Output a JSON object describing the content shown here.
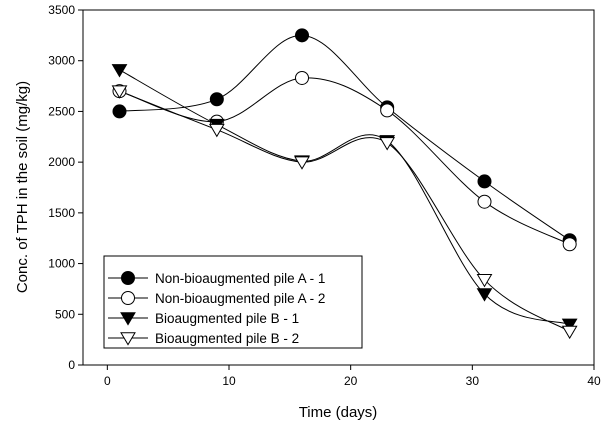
{
  "chart_data": {
    "type": "line",
    "xlabel": "Time (days)",
    "ylabel": "Conc. of TPH  in the soil (mg/kg)",
    "xlim": [
      -2,
      40
    ],
    "ylim": [
      0,
      3500
    ],
    "xticks": [
      0,
      10,
      20,
      30,
      40
    ],
    "yticks": [
      0,
      500,
      1000,
      1500,
      2000,
      2500,
      3000,
      3500
    ],
    "grid": false,
    "legend_position": "bottom-left",
    "series": [
      {
        "name": "Non-bioaugmented pile A - 1",
        "marker": "circle-filled",
        "x": [
          1,
          9,
          16,
          23,
          31,
          38
        ],
        "y": [
          2500,
          2620,
          3250,
          2540,
          1810,
          1230
        ]
      },
      {
        "name": "Non-bioaugmented pile A - 2",
        "marker": "circle-open",
        "x": [
          1,
          9,
          16,
          23,
          31,
          38
        ],
        "y": [
          2700,
          2400,
          2830,
          2510,
          1610,
          1190
        ]
      },
      {
        "name": "Bioaugmented pile B - 1",
        "marker": "triangle-down-filled",
        "x": [
          1,
          9,
          16,
          23,
          31,
          38
        ],
        "y": [
          2910,
          2370,
          2010,
          2210,
          700,
          400
        ]
      },
      {
        "name": "Bioaugmented pile B - 2",
        "marker": "triangle-down-open",
        "x": [
          1,
          9,
          16,
          23,
          31,
          38
        ],
        "y": [
          2700,
          2320,
          2000,
          2190,
          840,
          330
        ]
      }
    ]
  }
}
